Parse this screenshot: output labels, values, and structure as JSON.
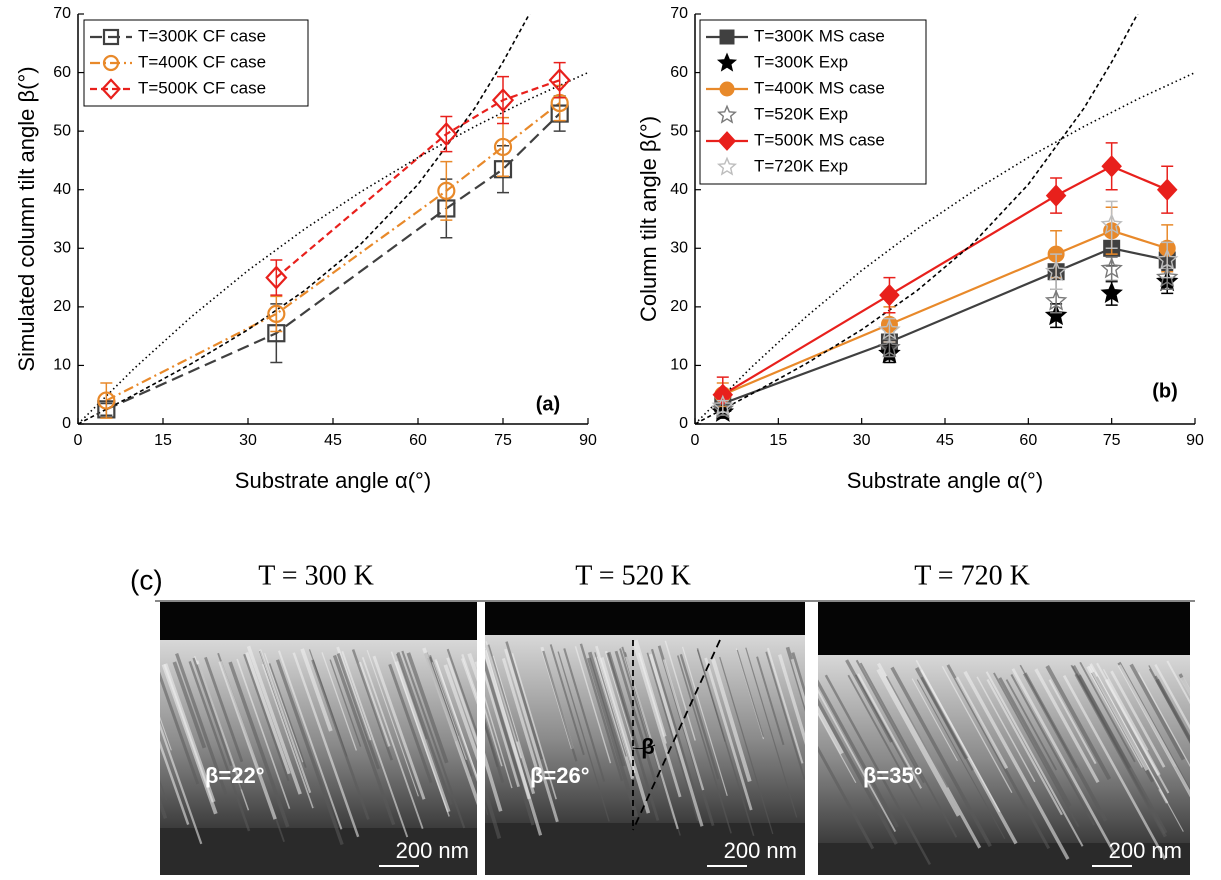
{
  "chart_data": [
    {
      "type": "line",
      "panel_label": "(a)",
      "x_label": "Substrate angle α(°)",
      "y_label": "Simulated column tilt angle β(°)",
      "xlim": [
        0,
        90
      ],
      "xticks": [
        0,
        15,
        30,
        45,
        60,
        75,
        90
      ],
      "ylim": [
        0,
        70
      ],
      "yticks": [
        0,
        10,
        20,
        30,
        40,
        50,
        60,
        70
      ],
      "grid": false,
      "legend": "upper left",
      "series": [
        {
          "name": "T=300K CF case",
          "color": "#404040",
          "line": "longdash",
          "marker": "square",
          "filled": false,
          "x": [
            5,
            35,
            65,
            75,
            85
          ],
          "values": [
            2.5,
            15.5,
            36.8,
            43.5,
            53
          ],
          "errors": [
            1,
            5,
            5,
            4,
            3
          ]
        },
        {
          "name": "T=400K CF case",
          "color": "#e8892a",
          "line": "dashdot",
          "marker": "circle",
          "filled": false,
          "x": [
            5,
            35,
            65,
            75,
            85
          ],
          "values": [
            4,
            18.8,
            39.8,
            47.3,
            54.8
          ],
          "errors": [
            3,
            3,
            5,
            5,
            3
          ]
        },
        {
          "name": "T=500K CF case",
          "color": "#e8201c",
          "line": "dashed",
          "marker": "diamond",
          "filled": false,
          "x": [
            35,
            65,
            75,
            85
          ],
          "values": [
            25,
            49.5,
            55.3,
            58.7
          ],
          "errors": [
            3,
            3,
            4,
            3
          ]
        },
        {
          "color": "#000000",
          "line": "shortdash",
          "marker": "none",
          "x": [
            0,
            10,
            20,
            30,
            40,
            50,
            60,
            70,
            75,
            80
          ],
          "values": [
            0,
            5.04,
            10.3,
            16.1,
            22.8,
            30.8,
            40.9,
            53.9,
            61.8,
            70.6
          ]
        },
        {
          "color": "#000000",
          "line": "dotted",
          "marker": "none",
          "x": [
            0,
            10,
            20,
            30,
            40,
            50,
            60,
            70,
            80,
            90
          ],
          "values": [
            0,
            9.56,
            18.3,
            26.2,
            33.3,
            39.7,
            45.5,
            50.8,
            55.6,
            60
          ]
        }
      ]
    },
    {
      "type": "line",
      "panel_label": "(b)",
      "x_label": "Substrate angle α(°)",
      "y_label": "Column tilt angle β(°)",
      "xlim": [
        0,
        90
      ],
      "xticks": [
        0,
        15,
        30,
        45,
        60,
        75,
        90
      ],
      "ylim": [
        0,
        70
      ],
      "yticks": [
        0,
        10,
        20,
        30,
        40,
        50,
        60,
        70
      ],
      "grid": false,
      "legend": "upper left",
      "series": [
        {
          "name": "T=300K MS case",
          "color": "#404040",
          "line": "solid",
          "marker": "square",
          "filled": true,
          "x": [
            5,
            35,
            65,
            75,
            85
          ],
          "values": [
            3.5,
            14,
            26,
            30,
            28
          ],
          "errors": [
            2,
            3,
            3,
            3,
            3
          ]
        },
        {
          "name": "T=300K Exp",
          "color": "#000000",
          "line": "none",
          "marker": "star",
          "filled": true,
          "x": [
            5,
            35,
            65,
            75,
            85
          ],
          "values": [
            2,
            12,
            18.5,
            22.3,
            24.3
          ],
          "errors": [
            1,
            1.5,
            2,
            2,
            2
          ]
        },
        {
          "name": "T=400K MS case",
          "color": "#e8892a",
          "line": "solid",
          "marker": "circle",
          "filled": true,
          "x": [
            5,
            35,
            65,
            75,
            85
          ],
          "values": [
            5,
            17,
            29,
            33,
            30
          ],
          "errors": [
            2,
            3,
            4,
            4,
            4
          ]
        },
        {
          "name": "T=520K Exp",
          "color": "#7a7a7a",
          "line": "none",
          "marker": "star",
          "filled": false,
          "x": [
            5,
            35,
            65,
            75,
            85
          ],
          "values": [
            2.5,
            13,
            21,
            26.5,
            25
          ],
          "errors": [
            1,
            1.5,
            2,
            2,
            2
          ]
        },
        {
          "name": "T=500K MS case",
          "color": "#e8201c",
          "line": "solid",
          "marker": "diamond",
          "filled": true,
          "x": [
            5,
            35,
            65,
            75,
            85
          ],
          "values": [
            5,
            22,
            39,
            44,
            40
          ],
          "errors": [
            3,
            3,
            3,
            4,
            4
          ]
        },
        {
          "name": "T=720K Exp",
          "color": "#bdbdbd",
          "line": "none",
          "marker": "star",
          "filled": false,
          "x": [
            5,
            35,
            65,
            75,
            85
          ],
          "values": [
            3,
            16,
            26,
            34,
            28
          ],
          "errors": [
            1,
            2,
            3,
            4,
            3
          ]
        },
        {
          "color": "#000000",
          "line": "shortdash",
          "marker": "none",
          "x": [
            0,
            10,
            20,
            30,
            40,
            50,
            60,
            70,
            75,
            80
          ],
          "values": [
            0,
            5.04,
            10.3,
            16.1,
            22.8,
            30.8,
            40.9,
            53.9,
            61.8,
            70.6
          ]
        },
        {
          "color": "#000000",
          "line": "dotted",
          "marker": "none",
          "x": [
            0,
            10,
            20,
            30,
            40,
            50,
            60,
            70,
            80,
            90
          ],
          "values": [
            0,
            9.56,
            18.3,
            26.2,
            33.3,
            39.7,
            45.5,
            50.8,
            55.6,
            60
          ]
        }
      ]
    }
  ],
  "panel_c": {
    "label": "(c)",
    "angle_label": "β",
    "images": [
      {
        "title": "T = 300 K",
        "beta": "β=22°",
        "scale": "200 nm"
      },
      {
        "title": "T = 520 K",
        "beta": "β=26°",
        "scale": "200 nm"
      },
      {
        "title": "T = 720 K",
        "beta": "β=35°",
        "scale": "200 nm"
      }
    ]
  }
}
